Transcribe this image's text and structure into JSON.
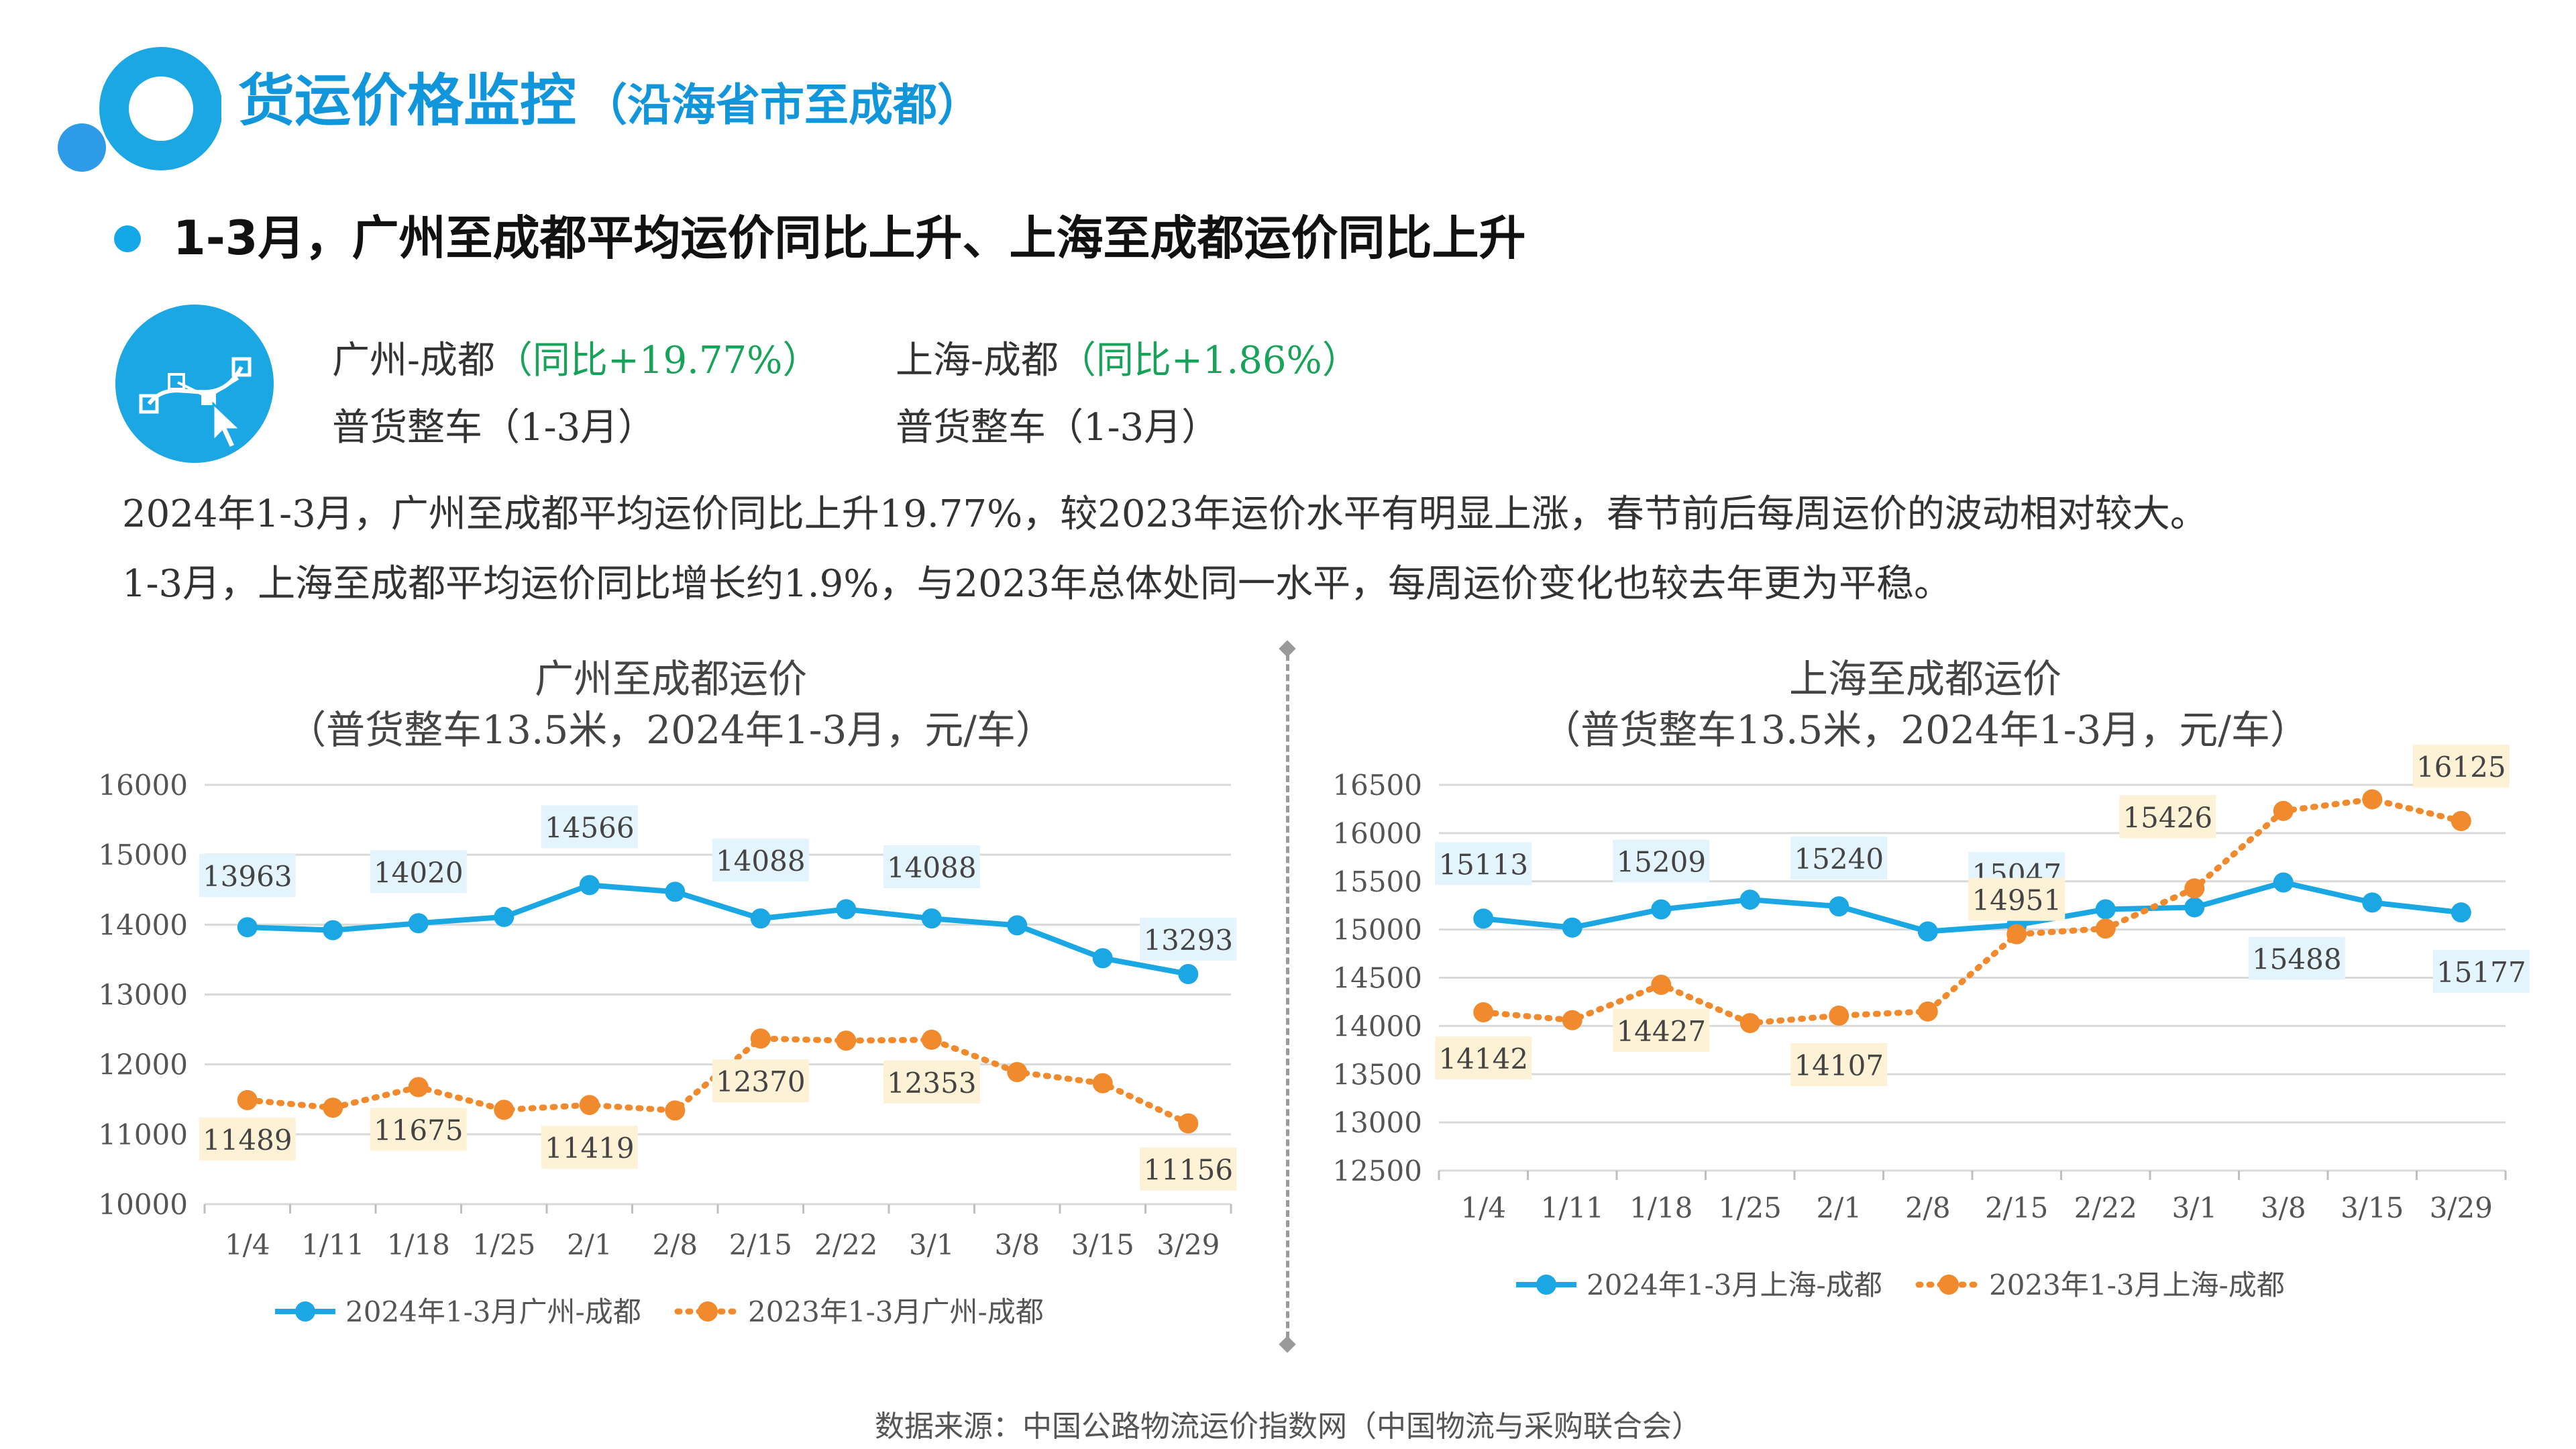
{
  "header": {
    "title": "货运价格监控",
    "subtitle": "（沿海省市至成都）"
  },
  "headline": "1-3月，广州至成都平均运价同比上升、上海至成都运价同比上升",
  "routes": [
    {
      "name": "广州-成都",
      "yoy": "（同比+19.77%）",
      "type": "普货整车（1-3月）"
    },
    {
      "name": "上海-成都",
      "yoy": "（同比+1.86%）",
      "type": "普货整车（1-3月）"
    }
  ],
  "summary": [
    "2024年1-3月，广州至成都平均运价同比上升19.77%，较2023年运价水平有明显上涨，春节前后每周运价的波动相对较大。",
    "1-3月，上海至成都平均运价同比增长约1.9%，与2023年总体处同一水平，每周运价变化也较去年更为平稳。"
  ],
  "colors": {
    "series_2024": "#1aa7e4",
    "series_2023": "#f08a2c",
    "label_2024_bg": "#e3f4fc",
    "label_2023_bg": "#fdf1d6",
    "title_blue": "#1296db"
  },
  "chart_data": [
    {
      "type": "line",
      "title": "广州至成都运价",
      "subtitle": "（普货整车13.5米，2024年1-3月，元/车）",
      "categories": [
        "1/4",
        "1/11",
        "1/18",
        "1/25",
        "2/1",
        "2/8",
        "2/15",
        "2/22",
        "3/1",
        "3/8",
        "3/15",
        "3/29"
      ],
      "ylim": [
        10000,
        16000
      ],
      "yticks": [
        10000,
        11000,
        12000,
        13000,
        14000,
        15000,
        16000
      ],
      "grid": true,
      "legend": "bottom",
      "series": [
        {
          "name": "2024年1-3月广州-成都",
          "color": "#1aa7e4",
          "style": "solid",
          "values": [
            13963,
            13920,
            14020,
            14110,
            14566,
            14470,
            14088,
            14220,
            14088,
            13990,
            13520,
            13293
          ],
          "labels": [
            0,
            2,
            4,
            6,
            8,
            11
          ]
        },
        {
          "name": "2023年1-3月广州-成都",
          "color": "#f08a2c",
          "style": "dotted",
          "values": [
            11489,
            11380,
            11675,
            11350,
            11419,
            11340,
            12370,
            12340,
            12353,
            11890,
            11730,
            11156
          ],
          "labels": [
            0,
            2,
            4,
            6,
            8,
            11
          ]
        }
      ]
    },
    {
      "type": "line",
      "title": "上海至成都运价",
      "subtitle": "（普货整车13.5米，2024年1-3月，元/车）",
      "categories": [
        "1/4",
        "1/11",
        "1/18",
        "1/25",
        "2/1",
        "2/8",
        "2/15",
        "2/22",
        "3/1",
        "3/8",
        "3/15",
        "3/29"
      ],
      "ylim": [
        12500,
        16500
      ],
      "yticks": [
        12500,
        13000,
        13500,
        14000,
        14500,
        15000,
        15500,
        16000,
        16500
      ],
      "grid": true,
      "legend": "bottom",
      "series": [
        {
          "name": "2024年1-3月上海-成都",
          "color": "#1aa7e4",
          "style": "solid",
          "values": [
            15113,
            15020,
            15209,
            15310,
            15240,
            14980,
            15047,
            15210,
            15230,
            15488,
            15280,
            15177
          ],
          "labels": [
            0,
            2,
            4,
            6,
            9,
            11
          ]
        },
        {
          "name": "2023年1-3月上海-成都",
          "color": "#f08a2c",
          "style": "dotted",
          "values": [
            14142,
            14060,
            14427,
            14030,
            14107,
            14150,
            14951,
            15010,
            15426,
            16230,
            16350,
            16125
          ],
          "labels": [
            0,
            2,
            4,
            6,
            8,
            11
          ]
        }
      ]
    }
  ],
  "source": "数据来源：中国公路物流运价指数网（中国物流与采购联合会）"
}
